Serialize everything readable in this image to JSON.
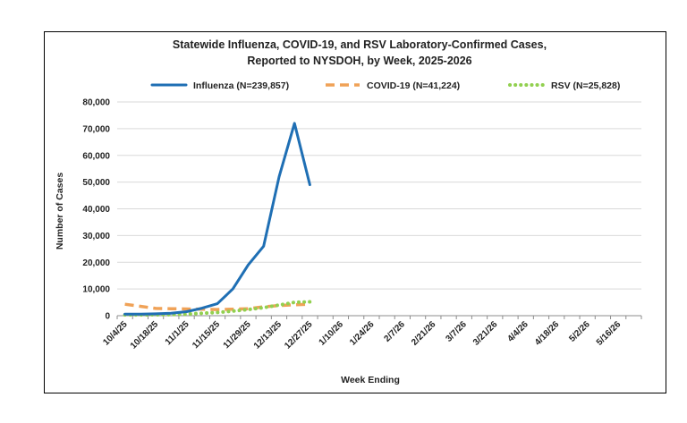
{
  "chart_data": {
    "type": "line",
    "title_lines": [
      "Statewide Influenza,  COVID-19, and RSV Laboratory-Confirmed  Cases,",
      "Reported to NYSDOH, by Week, 2025-2026"
    ],
    "xlabel": "Week Ending",
    "ylabel": "Number of Cases",
    "ylim": [
      0,
      80000
    ],
    "y_ticks": [
      0,
      10000,
      20000,
      30000,
      40000,
      50000,
      60000,
      70000,
      80000
    ],
    "y_tick_labels": [
      "0",
      "10,000",
      "20,000",
      "30,000",
      "40,000",
      "50,000",
      "60,000",
      "70,000",
      "80,000"
    ],
    "grid": true,
    "legend_position": "top",
    "x_weeks": [
      "10/4/25",
      "10/11/25",
      "10/18/25",
      "10/25/25",
      "11/1/25",
      "11/8/25",
      "11/15/25",
      "11/22/25",
      "11/29/25",
      "12/6/25",
      "12/13/25",
      "12/20/25",
      "12/27/25",
      "1/3/26",
      "1/10/26",
      "1/17/26",
      "1/24/26",
      "1/31/26",
      "2/7/26",
      "2/14/26",
      "2/21/26",
      "2/28/26",
      "3/7/26",
      "3/14/26",
      "3/21/26",
      "3/28/26",
      "4/4/26",
      "4/11/26",
      "4/18/26",
      "4/25/26",
      "5/2/26",
      "5/9/26",
      "5/16/26",
      "5/23/26"
    ],
    "x_tick_labels": [
      "10/4/25",
      "10/18/25",
      "11/1/25",
      "11/15/25",
      "11/29/25",
      "12/13/25",
      "12/27/25",
      "1/10/26",
      "1/24/26",
      "2/7/26",
      "2/21/26",
      "3/7/26",
      "3/21/26",
      "4/4/26",
      "4/18/26",
      "5/2/26",
      "5/16/26"
    ],
    "series": [
      {
        "name": "Influenza (N=239,857)",
        "color": "#1f6fb4",
        "style": "solid",
        "values": [
          600,
          600,
          700,
          900,
          1500,
          2800,
          4500,
          10000,
          19000,
          26000,
          52000,
          72000,
          49000
        ]
      },
      {
        "name": "COVID-19 (N=41,224)",
        "color": "#f0a257",
        "style": "dashed",
        "values": [
          4300,
          3500,
          2700,
          2600,
          2500,
          2400,
          2300,
          2400,
          2600,
          3300,
          3800,
          4100,
          4300
        ]
      },
      {
        "name": "RSV (N=25,828)",
        "color": "#92d050",
        "style": "dotted",
        "values": [
          300,
          300,
          350,
          400,
          600,
          900,
          1200,
          1700,
          2300,
          3000,
          4000,
          5000,
          5200
        ]
      }
    ]
  }
}
